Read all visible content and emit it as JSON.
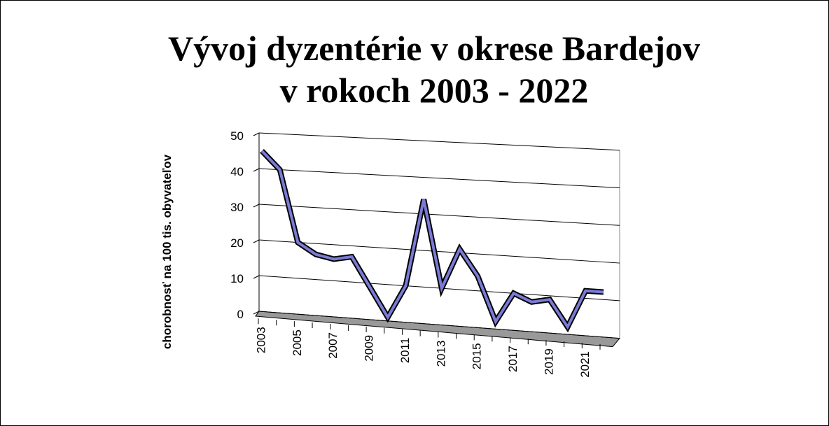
{
  "chart_data": {
    "type": "line",
    "title": [
      "Vývoj dyzentérie v okrese Bardejov",
      "v rokoch 2003 - 2022"
    ],
    "y_label": "chorobnosť na 100 tis. obyvateľov",
    "categories": [
      "2003",
      null,
      "2005",
      null,
      "2007",
      null,
      "2009",
      null,
      "2011",
      null,
      "2013",
      null,
      "2015",
      null,
      "2017",
      null,
      "2019",
      null,
      "2021",
      null
    ],
    "series": [
      {
        "name": "chorobnosť",
        "color": "#7b7bd6",
        "values": [
          45,
          40,
          20,
          17,
          16,
          17,
          9,
          1,
          10,
          34,
          10,
          21,
          14,
          2,
          10,
          8,
          9,
          2,
          12,
          12
        ]
      }
    ],
    "ylim": [
      0,
      50
    ],
    "yticks": [
      0,
      10,
      20,
      30,
      40,
      50
    ],
    "grid": true
  }
}
